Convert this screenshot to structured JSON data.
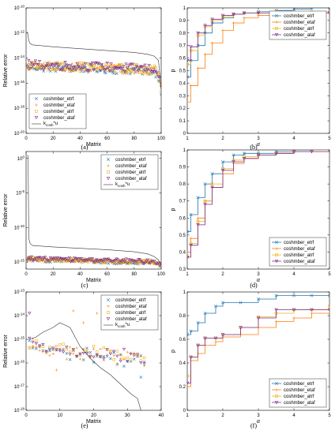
{
  "chart_data": [
    {
      "id": "a",
      "caption": "(a)",
      "type": "scatter",
      "xlabel": "Matrix",
      "ylabel": "Relative error",
      "xlim": [
        0,
        100
      ],
      "ylog": true,
      "ylim_exp": [
        -20,
        -10
      ],
      "xticks": [
        0,
        20,
        40,
        60,
        80,
        100
      ],
      "yticks": [
        {
          "exp": -10,
          "label": "10-10"
        },
        {
          "exp": -12,
          "label": "10-12"
        },
        {
          "exp": -14,
          "label": "10-14"
        },
        {
          "exp": -16,
          "label": "10-16"
        },
        {
          "exp": -18,
          "label": "10-18"
        },
        {
          "exp": -20,
          "label": "10-20"
        }
      ],
      "legend_pos": "bottom-left",
      "series": [
        {
          "name": "coshmber_etrf",
          "marker": "x",
          "color": "#1f77b4"
        },
        {
          "name": "coshmber_etaf",
          "marker": "plus",
          "color": "#ff7f0e"
        },
        {
          "name": "coshmber_atrf",
          "marker": "square",
          "color": "#edb120"
        },
        {
          "name": "coshmber_ataf",
          "marker": "triangle",
          "color": "#7e2f8e"
        }
      ],
      "bound": {
        "label": "kcosh*u",
        "label_main": "k",
        "label_sub": "cosh",
        "label_tail": "*u",
        "n": 100,
        "x": [
          1,
          2,
          3,
          5,
          10,
          20,
          40,
          60,
          80,
          90,
          95,
          98,
          100
        ],
        "exp": [
          -11.9,
          -12.6,
          -12.85,
          -12.95,
          -13.0,
          -13.1,
          -13.25,
          -13.4,
          -13.55,
          -13.7,
          -13.85,
          -14.2,
          -16.5
        ]
      },
      "points": {
        "n": 100,
        "x0": 1,
        "x1": 100,
        "profile_x": [
          1,
          10,
          50,
          95,
          98,
          100
        ],
        "profile_exp": [
          -14.6,
          -14.65,
          -14.75,
          -14.95,
          -15.4,
          -16.5
        ],
        "spread": 0.7
      }
    },
    {
      "id": "b",
      "caption": "(b)",
      "type": "line",
      "xlabel": "α",
      "ylabel": "p",
      "xlim": [
        1,
        5
      ],
      "ylim": [
        0,
        1
      ],
      "xticks": [
        1,
        2,
        3,
        4,
        5
      ],
      "yticks": [
        0,
        0.1,
        0.2,
        0.3,
        0.4,
        0.5,
        0.6,
        0.7,
        0.8,
        0.9,
        1
      ],
      "legend_pos": "top-right",
      "series": [
        {
          "name": "coshmber_etrf",
          "marker": "x",
          "color": "#1f77b4",
          "x": [
            1,
            1.1,
            1.3,
            1.5,
            1.7,
            2.0,
            2.3,
            2.6,
            3.0,
            3.5,
            4.0,
            4.5,
            5.0
          ],
          "y": [
            0.45,
            0.58,
            0.7,
            0.8,
            0.88,
            0.92,
            0.95,
            0.96,
            0.97,
            0.98,
            0.99,
            1.0,
            1.0
          ]
        },
        {
          "name": "coshmber_etaf",
          "marker": "plus",
          "color": "#ff7f0e",
          "x": [
            1,
            1.1,
            1.3,
            1.5,
            1.7,
            2.0,
            2.3,
            2.6,
            3.0,
            3.5,
            4.0,
            4.5,
            5.0
          ],
          "y": [
            0.25,
            0.38,
            0.52,
            0.63,
            0.72,
            0.82,
            0.88,
            0.92,
            0.94,
            0.95,
            0.96,
            0.96,
            0.96
          ]
        },
        {
          "name": "coshmber_atrf",
          "marker": "square",
          "color": "#edb120",
          "x": [
            1,
            1.1,
            1.3,
            1.5,
            1.7,
            2.0,
            2.3,
            2.6,
            3.0,
            3.5,
            4.0,
            4.5,
            5.0
          ],
          "y": [
            0.55,
            0.66,
            0.78,
            0.85,
            0.9,
            0.93,
            0.95,
            0.96,
            0.96,
            0.97,
            0.97,
            0.97,
            0.97
          ]
        },
        {
          "name": "coshmber_ataf",
          "marker": "triangle",
          "color": "#7e2f8e",
          "x": [
            1,
            1.1,
            1.3,
            1.5,
            1.7,
            2.0,
            2.3,
            2.6,
            3.0,
            3.5,
            4.0,
            4.5,
            5.0
          ],
          "y": [
            0.58,
            0.69,
            0.8,
            0.86,
            0.91,
            0.94,
            0.95,
            0.96,
            0.96,
            0.96,
            0.96,
            0.96,
            0.96
          ]
        }
      ]
    },
    {
      "id": "c",
      "caption": "(c)",
      "type": "scatter",
      "xlabel": "Matrix",
      "ylabel": "Relative error",
      "xlim": [
        0,
        100
      ],
      "ylog": true,
      "ylim_exp": [
        -16,
        1
      ],
      "xticks": [
        0,
        20,
        40,
        60,
        80,
        100
      ],
      "yticks": [
        {
          "exp": 0,
          "label": "100"
        },
        {
          "exp": -5,
          "label": "10-5"
        },
        {
          "exp": -10,
          "label": "10-10"
        },
        {
          "exp": -15,
          "label": "10-15"
        }
      ],
      "legend_pos": "top-right",
      "series": [
        {
          "name": "coshmber_etrf",
          "marker": "x",
          "color": "#1f77b4"
        },
        {
          "name": "coshmber_etaf",
          "marker": "plus",
          "color": "#ff7f0e"
        },
        {
          "name": "coshmber_atrf",
          "marker": "square",
          "color": "#edb120"
        },
        {
          "name": "coshmber_ataf",
          "marker": "triangle",
          "color": "#7e2f8e"
        }
      ],
      "bound": {
        "label": "kcosh*u",
        "label_main": "k",
        "label_sub": "cosh",
        "label_tail": "*u",
        "n": 100,
        "x": [
          1,
          1.5,
          2,
          3,
          5,
          20,
          40,
          60,
          80,
          90,
          95,
          98,
          100
        ],
        "exp": [
          0.5,
          0.3,
          -11.5,
          -12.3,
          -12.6,
          -12.8,
          -13.0,
          -13.2,
          -13.5,
          -13.8,
          -14.2,
          -14.7,
          -15.3
        ]
      },
      "points": {
        "n": 100,
        "x0": 1,
        "x1": 100,
        "profile_x": [
          1,
          10,
          50,
          95,
          100
        ],
        "profile_exp": [
          -14.5,
          -14.6,
          -14.8,
          -15.0,
          -15.4
        ],
        "spread": 0.6
      }
    },
    {
      "id": "d",
      "caption": "(d)",
      "type": "line",
      "xlabel": "α",
      "ylabel": "p",
      "xlim": [
        1,
        5
      ],
      "ylim": [
        0.3,
        1
      ],
      "xticks": [
        1,
        2,
        3,
        4,
        5
      ],
      "yticks": [
        0.3,
        0.4,
        0.5,
        0.6,
        0.7,
        0.8,
        0.9,
        1
      ],
      "legend_pos": "bottom-right",
      "series": [
        {
          "name": "coshmber_etrf",
          "marker": "x",
          "color": "#1f77b4",
          "x": [
            1,
            1.1,
            1.3,
            1.5,
            1.7,
            2.0,
            2.3,
            2.6,
            3.0,
            3.5,
            4.0,
            4.5,
            5.0
          ],
          "y": [
            0.52,
            0.62,
            0.72,
            0.8,
            0.86,
            0.93,
            0.97,
            0.98,
            0.98,
            0.99,
            1.0,
            1.0,
            1.0
          ]
        },
        {
          "name": "coshmber_etaf",
          "marker": "plus",
          "color": "#ff7f0e",
          "x": [
            1,
            1.1,
            1.3,
            1.5,
            1.7,
            2.0,
            2.3,
            2.6,
            3.0,
            3.5,
            4.0,
            4.5,
            5.0
          ],
          "y": [
            0.4,
            0.48,
            0.6,
            0.7,
            0.78,
            0.86,
            0.92,
            0.95,
            0.97,
            0.98,
            0.99,
            0.99,
            1.0
          ]
        },
        {
          "name": "coshmber_atrf",
          "marker": "square",
          "color": "#edb120",
          "x": [
            1,
            1.1,
            1.3,
            1.5,
            1.7,
            2.0,
            2.3,
            2.6,
            3.0,
            3.5,
            4.0,
            4.5,
            5.0
          ],
          "y": [
            0.37,
            0.45,
            0.58,
            0.7,
            0.8,
            0.89,
            0.94,
            0.96,
            0.97,
            0.98,
            0.99,
            1.0,
            1.0
          ]
        },
        {
          "name": "coshmber_ataf",
          "marker": "triangle",
          "color": "#7e2f8e",
          "x": [
            1,
            1.1,
            1.3,
            1.5,
            1.7,
            2.0,
            2.3,
            2.6,
            3.0,
            3.5,
            4.0,
            4.5,
            5.0
          ],
          "y": [
            0.37,
            0.44,
            0.56,
            0.68,
            0.78,
            0.88,
            0.93,
            0.95,
            0.97,
            0.98,
            0.99,
            0.99,
            1.0
          ]
        }
      ]
    },
    {
      "id": "e",
      "caption": "(e)",
      "type": "scatter",
      "xlabel": "Matrix",
      "ylabel": "Relative error",
      "xlim": [
        0,
        40
      ],
      "ylog": true,
      "ylim_exp": [
        -18,
        -13
      ],
      "xticks": [
        0,
        10,
        20,
        30,
        40
      ],
      "yticks": [
        {
          "exp": -13,
          "label": "10-13"
        },
        {
          "exp": -14,
          "label": "10-14"
        },
        {
          "exp": -15,
          "label": "10-15"
        },
        {
          "exp": -16,
          "label": "10-16"
        },
        {
          "exp": -17,
          "label": "10-17"
        },
        {
          "exp": -18,
          "label": "10-18"
        }
      ],
      "legend_pos": "top-right",
      "series": [
        {
          "name": "coshmber_etrf",
          "marker": "x",
          "color": "#1f77b4"
        },
        {
          "name": "coshmber_etaf",
          "marker": "plus",
          "color": "#ff7f0e"
        },
        {
          "name": "coshmber_atrf",
          "marker": "square",
          "color": "#edb120"
        },
        {
          "name": "coshmber_ataf",
          "marker": "triangle",
          "color": "#7e2f8e"
        }
      ],
      "bound": {
        "label": "kcosh*u",
        "label_main": "k",
        "label_sub": "cosh",
        "label_tail": "*u",
        "n": 35,
        "x": [
          1,
          3,
          5,
          8,
          10,
          13,
          16,
          19,
          22,
          25,
          28,
          31,
          33,
          34,
          35
        ],
        "exp": [
          -15.0,
          -14.9,
          -14.7,
          -14.5,
          -14.3,
          -14.5,
          -15.3,
          -15.8,
          -16.2,
          -16.5,
          -16.9,
          -17.3,
          -17.5,
          -18.0,
          -18.5
        ]
      },
      "points": {
        "n": 35,
        "x0": 1,
        "x1": 35,
        "profile_x": [
          1,
          10,
          20,
          35
        ],
        "profile_exp": [
          -15.2,
          -15.5,
          -15.6,
          -15.9
        ],
        "spread": 0.6,
        "highlights": [
          {
            "x": 1,
            "exp": -13.9,
            "s": 3
          },
          {
            "x": 2,
            "exp": -15.3,
            "s": 1
          },
          {
            "x": 14,
            "exp": -13.8,
            "s": 1
          },
          {
            "x": 17,
            "exp": -14.3,
            "s": 1
          },
          {
            "x": 21,
            "exp": -13.9,
            "s": 1
          },
          {
            "x": 28,
            "exp": -14.5,
            "s": 1
          },
          {
            "x": 34,
            "exp": -16.6,
            "s": 0
          },
          {
            "x": 9,
            "exp": -16.3,
            "s": 1
          }
        ]
      }
    },
    {
      "id": "f",
      "caption": "(f)",
      "type": "line",
      "xlabel": "α",
      "ylabel": "p",
      "xlim": [
        1,
        5
      ],
      "ylim": [
        0,
        1
      ],
      "xticks": [
        1,
        2,
        3,
        4,
        5
      ],
      "yticks": [
        0,
        0.2,
        0.4,
        0.6,
        0.8,
        1
      ],
      "legend_pos": "bottom-right",
      "series": [
        {
          "name": "coshmber_etrf",
          "marker": "x",
          "color": "#1f77b4",
          "x": [
            1,
            1.1,
            1.3,
            1.5,
            1.8,
            2.0,
            2.5,
            3.0,
            3.5,
            4.0,
            4.5,
            5.0
          ],
          "y": [
            0.64,
            0.67,
            0.74,
            0.82,
            0.88,
            0.91,
            0.91,
            0.94,
            0.97,
            0.97,
            0.97,
            0.97
          ]
        },
        {
          "name": "coshmber_etaf",
          "marker": "plus",
          "color": "#ff7f0e",
          "x": [
            1,
            1.1,
            1.3,
            1.5,
            1.8,
            2.0,
            2.5,
            3.0,
            3.5,
            4.0,
            4.5,
            5.0
          ],
          "y": [
            0.2,
            0.42,
            0.48,
            0.55,
            0.58,
            0.62,
            0.64,
            0.7,
            0.75,
            0.78,
            0.82,
            0.85
          ]
        },
        {
          "name": "coshmber_atrf",
          "marker": "square",
          "color": "#edb120",
          "x": [
            1,
            1.1,
            1.3,
            1.5,
            1.8,
            2.0,
            2.5,
            3.0,
            3.5,
            4.0,
            4.5,
            5.0
          ],
          "y": [
            0.29,
            0.45,
            0.55,
            0.61,
            0.61,
            0.64,
            0.7,
            0.79,
            0.82,
            0.85,
            0.85,
            0.88
          ]
        },
        {
          "name": "coshmber_ataf",
          "marker": "triangle",
          "color": "#7e2f8e",
          "x": [
            1,
            1.1,
            1.3,
            1.5,
            1.8,
            2.0,
            2.5,
            3.0,
            3.5,
            4.0,
            4.5,
            5.0
          ],
          "y": [
            0.23,
            0.45,
            0.55,
            0.61,
            0.61,
            0.64,
            0.7,
            0.78,
            0.85,
            0.85,
            0.85,
            0.85
          ]
        }
      ]
    }
  ]
}
